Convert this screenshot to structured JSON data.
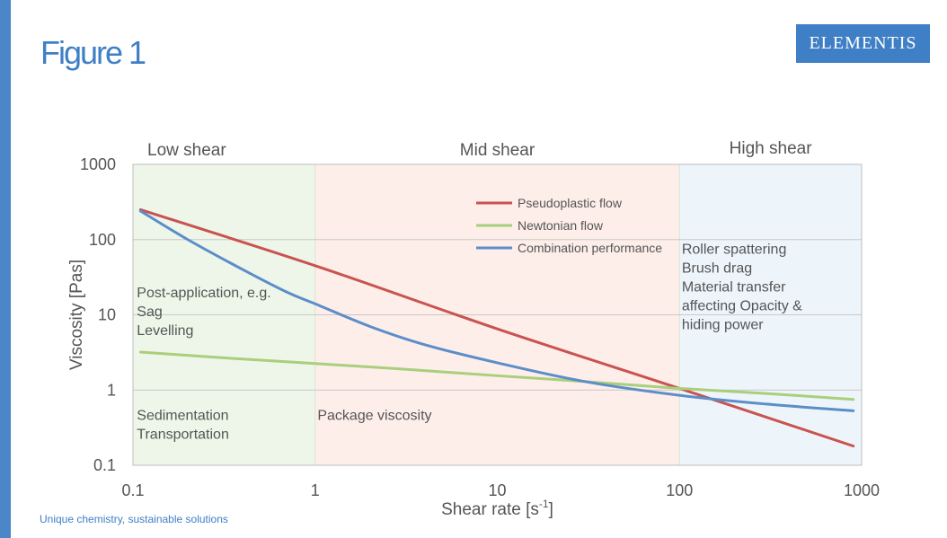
{
  "slide": {
    "title": "Figure 1",
    "logo": "ELEMENTIS",
    "footer": "Unique chemistry, sustainable solutions",
    "accent_color": "#3f7fc6"
  },
  "chart_data": {
    "type": "line",
    "xscale": "log",
    "yscale": "log",
    "xlim": [
      0.1,
      1000
    ],
    "ylim": [
      0.1,
      1000
    ],
    "xticks": [
      "0.1",
      "1",
      "10",
      "100",
      "1000"
    ],
    "yticks": [
      "1000",
      "100",
      "10",
      "1",
      "0.1"
    ],
    "xlabel_main": "Shear rate [s",
    "xlabel_sup": "-1",
    "xlabel_end": "]",
    "ylabel": "Viscosity [Pas]",
    "grid": "horizontal",
    "legend_placement": "top-center",
    "regions": [
      {
        "label": "Low shear",
        "x_from": 0.1,
        "x_to": 1,
        "color": "#eef6ea"
      },
      {
        "label": "Mid shear",
        "x_from": 1,
        "x_to": 100,
        "color": "#fdeeea"
      },
      {
        "label": "High shear",
        "x_from": 100,
        "x_to": 1000,
        "color": "#edf5fb"
      }
    ],
    "annotations": [
      {
        "lines": [
          "Post-application, e.g.",
          "Sag",
          "Levelling"
        ],
        "x": 0.105,
        "y": 17
      },
      {
        "lines": [
          "Sedimentation",
          "Transportation"
        ],
        "x": 0.105,
        "y": 0.4
      },
      {
        "lines": [
          "Package viscosity"
        ],
        "x": 1.03,
        "y": 0.4
      },
      {
        "lines": [
          "Roller spattering",
          "Brush drag",
          "Material transfer",
          "affecting Opacity &",
          "hiding power"
        ],
        "x": 103,
        "y": 65
      }
    ],
    "series": [
      {
        "name": "Pseudoplastic flow",
        "color": "#c9534f",
        "x": [
          0.11,
          1,
          10,
          100,
          900
        ],
        "y": [
          250,
          45,
          6.5,
          1.05,
          0.18
        ]
      },
      {
        "name": "Newtonian flow",
        "color": "#a9cf7c",
        "x": [
          0.11,
          0.3,
          1,
          3,
          10,
          30,
          100,
          300,
          900
        ],
        "y": [
          3.2,
          2.7,
          2.25,
          1.9,
          1.55,
          1.3,
          1.05,
          0.9,
          0.75
        ]
      },
      {
        "name": "Combination performance",
        "color": "#5b8ec9",
        "x": [
          0.11,
          0.2,
          0.4,
          0.7,
          1,
          2,
          4,
          10,
          30,
          100,
          300,
          900
        ],
        "y": [
          240,
          100,
          40,
          20,
          14,
          7,
          4,
          2.3,
          1.3,
          0.85,
          0.65,
          0.53
        ]
      }
    ]
  }
}
